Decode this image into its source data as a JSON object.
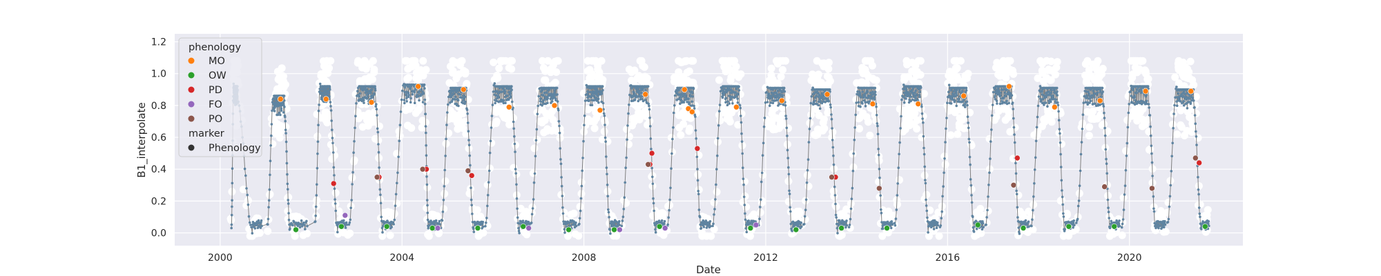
{
  "chart_data": {
    "type": "scatter",
    "xlabel": "Date",
    "ylabel": "B1_interpolate",
    "xlim": [
      "1999-01-01",
      "2022-07-01"
    ],
    "ylim": [
      -0.08,
      1.25
    ],
    "x_ticks": [
      "2000",
      "2004",
      "2008",
      "2012",
      "2016",
      "2020"
    ],
    "y_ticks": [
      "0.0",
      "0.2",
      "0.4",
      "0.6",
      "0.8",
      "1.0",
      "1.2"
    ],
    "grid": true,
    "background_color": "#eaeaf2",
    "legend": {
      "placement": "upper-left",
      "hue_title": "phenology",
      "hue_entries": [
        {
          "label": "MO",
          "color": "#ff7f0e"
        },
        {
          "label": "OW",
          "color": "#2ca02c"
        },
        {
          "label": "PD",
          "color": "#d62728"
        },
        {
          "label": "FO",
          "color": "#9467bd"
        },
        {
          "label": "PO",
          "color": "#8c564b"
        }
      ],
      "style_title": "marker",
      "style_entries": [
        {
          "label": "Phenology",
          "color": "#333333"
        }
      ]
    },
    "series": [
      {
        "role": "raw observations",
        "color": "#ffffff",
        "marker": "circle"
      },
      {
        "role": "interpolated curve",
        "color": "#5f84a1",
        "marker": "line"
      }
    ],
    "cycles": [
      {
        "start": "2000-04-01",
        "peak": 0.92,
        "peak_end": "2000-05-20",
        "floor_start": "2000-09-15",
        "floor_end": "2000-12-01"
      },
      {
        "start": "2001-01-15",
        "peak": 0.86,
        "peak_end": "2001-06-01",
        "floor_start": "2001-07-15",
        "floor_end": "2001-12-01"
      },
      {
        "start": "2002-02-01",
        "peak": 0.92,
        "peak_end": "2002-06-01",
        "floor_start": "2002-08-01",
        "floor_end": "2002-10-15"
      },
      {
        "start": "2002-11-01",
        "peak": 0.92,
        "peak_end": "2003-06-01",
        "floor_start": "2003-08-01",
        "floor_end": "2003-10-10"
      },
      {
        "start": "2003-10-20",
        "peak": 0.93,
        "peak_end": "2004-07-01",
        "floor_start": "2004-08-01",
        "floor_end": "2004-11-01"
      },
      {
        "start": "2004-11-10",
        "peak": 0.91,
        "peak_end": "2005-06-01",
        "floor_start": "2005-08-01",
        "floor_end": "2005-10-15"
      },
      {
        "start": "2005-11-01",
        "peak": 0.92,
        "peak_end": "2006-06-01",
        "floor_start": "2006-08-01",
        "floor_end": "2006-10-20"
      },
      {
        "start": "2006-11-01",
        "peak": 0.91,
        "peak_end": "2007-06-01",
        "floor_start": "2007-08-01",
        "floor_end": "2007-11-01"
      },
      {
        "start": "2007-11-20",
        "peak": 0.92,
        "peak_end": "2008-06-01",
        "floor_start": "2008-08-01",
        "floor_end": "2008-10-15"
      },
      {
        "start": "2008-11-01",
        "peak": 0.92,
        "peak_end": "2009-06-01",
        "floor_start": "2009-08-01",
        "floor_end": "2009-10-15"
      },
      {
        "start": "2009-11-01",
        "peak": 0.91,
        "peak_end": "2010-06-01",
        "floor_start": "2010-08-01",
        "floor_end": "2010-10-15"
      },
      {
        "start": "2010-11-01",
        "peak": 0.92,
        "peak_end": "2011-06-01",
        "floor_start": "2011-08-01",
        "floor_end": "2011-10-15"
      },
      {
        "start": "2011-11-01",
        "peak": 0.91,
        "peak_end": "2012-06-01",
        "floor_start": "2012-08-01",
        "floor_end": "2012-10-15"
      },
      {
        "start": "2012-11-01",
        "peak": 0.9,
        "peak_end": "2013-06-01",
        "floor_start": "2013-08-01",
        "floor_end": "2013-10-15"
      },
      {
        "start": "2013-11-01",
        "peak": 0.91,
        "peak_end": "2014-06-01",
        "floor_start": "2014-08-01",
        "floor_end": "2014-10-15"
      },
      {
        "start": "2014-11-01",
        "peak": 0.92,
        "peak_end": "2015-06-01",
        "floor_start": "2015-08-01",
        "floor_end": "2015-10-15"
      },
      {
        "start": "2015-11-01",
        "peak": 0.91,
        "peak_end": "2016-06-01",
        "floor_start": "2016-08-01",
        "floor_end": "2016-10-15"
      },
      {
        "start": "2016-11-01",
        "peak": 0.92,
        "peak_end": "2017-06-01",
        "floor_start": "2017-08-01",
        "floor_end": "2017-10-15"
      },
      {
        "start": "2017-11-01",
        "peak": 0.91,
        "peak_end": "2018-06-01",
        "floor_start": "2018-08-01",
        "floor_end": "2018-10-15"
      },
      {
        "start": "2018-11-01",
        "peak": 0.91,
        "peak_end": "2019-06-01",
        "floor_start": "2019-08-01",
        "floor_end": "2019-10-15"
      },
      {
        "start": "2019-11-01",
        "peak": 0.92,
        "peak_end": "2020-06-01",
        "floor_start": "2020-08-01",
        "floor_end": "2020-10-15"
      },
      {
        "start": "2020-11-01",
        "peak": 0.9,
        "peak_end": "2021-06-01",
        "floor_start": "2021-08-01",
        "floor_end": "2021-10-01"
      }
    ],
    "phenology_points": [
      {
        "date": "2001-05-01",
        "y": 0.84,
        "class": "MO"
      },
      {
        "date": "2002-05-01",
        "y": 0.84,
        "class": "MO"
      },
      {
        "date": "2003-05-01",
        "y": 0.82,
        "class": "MO"
      },
      {
        "date": "2004-05-10",
        "y": 0.92,
        "class": "MO"
      },
      {
        "date": "2005-05-10",
        "y": 0.9,
        "class": "MO"
      },
      {
        "date": "2006-05-10",
        "y": 0.79,
        "class": "MO"
      },
      {
        "date": "2007-05-10",
        "y": 0.8,
        "class": "MO"
      },
      {
        "date": "2008-05-10",
        "y": 0.77,
        "class": "MO"
      },
      {
        "date": "2009-05-10",
        "y": 0.87,
        "class": "MO"
      },
      {
        "date": "2010-03-20",
        "y": 0.9,
        "class": "MO"
      },
      {
        "date": "2010-04-20",
        "y": 0.78,
        "class": "MO"
      },
      {
        "date": "2010-05-20",
        "y": 0.76,
        "class": "MO"
      },
      {
        "date": "2011-05-10",
        "y": 0.79,
        "class": "MO"
      },
      {
        "date": "2012-05-10",
        "y": 0.83,
        "class": "MO"
      },
      {
        "date": "2013-05-10",
        "y": 0.87,
        "class": "MO"
      },
      {
        "date": "2014-05-10",
        "y": 0.81,
        "class": "MO"
      },
      {
        "date": "2015-05-10",
        "y": 0.81,
        "class": "MO"
      },
      {
        "date": "2016-05-10",
        "y": 0.86,
        "class": "MO"
      },
      {
        "date": "2017-05-10",
        "y": 0.92,
        "class": "MO"
      },
      {
        "date": "2018-05-10",
        "y": 0.79,
        "class": "MO"
      },
      {
        "date": "2019-05-10",
        "y": 0.83,
        "class": "MO"
      },
      {
        "date": "2020-05-10",
        "y": 0.89,
        "class": "MO"
      },
      {
        "date": "2021-05-10",
        "y": 0.89,
        "class": "MO"
      },
      {
        "date": "2001-09-01",
        "y": 0.02,
        "class": "OW"
      },
      {
        "date": "2002-09-01",
        "y": 0.04,
        "class": "OW"
      },
      {
        "date": "2003-09-01",
        "y": 0.04,
        "class": "OW"
      },
      {
        "date": "2004-09-01",
        "y": 0.03,
        "class": "OW"
      },
      {
        "date": "2005-09-01",
        "y": 0.03,
        "class": "OW"
      },
      {
        "date": "2006-09-01",
        "y": 0.04,
        "class": "OW"
      },
      {
        "date": "2007-09-01",
        "y": 0.02,
        "class": "OW"
      },
      {
        "date": "2008-09-01",
        "y": 0.02,
        "class": "OW"
      },
      {
        "date": "2009-09-01",
        "y": 0.04,
        "class": "OW"
      },
      {
        "date": "2011-09-01",
        "y": 0.03,
        "class": "OW"
      },
      {
        "date": "2012-09-01",
        "y": 0.02,
        "class": "OW"
      },
      {
        "date": "2013-09-01",
        "y": 0.03,
        "class": "OW"
      },
      {
        "date": "2014-09-01",
        "y": 0.03,
        "class": "OW"
      },
      {
        "date": "2016-09-01",
        "y": 0.05,
        "class": "OW"
      },
      {
        "date": "2017-09-01",
        "y": 0.03,
        "class": "OW"
      },
      {
        "date": "2018-09-01",
        "y": 0.04,
        "class": "OW"
      },
      {
        "date": "2019-09-01",
        "y": 0.04,
        "class": "OW"
      },
      {
        "date": "2021-09-01",
        "y": 0.04,
        "class": "OW"
      },
      {
        "date": "2002-07-01",
        "y": 0.31,
        "class": "PD"
      },
      {
        "date": "2003-07-01",
        "y": 0.35,
        "class": "PD"
      },
      {
        "date": "2004-07-15",
        "y": 0.4,
        "class": "PD"
      },
      {
        "date": "2005-07-15",
        "y": 0.36,
        "class": "PD"
      },
      {
        "date": "2009-07-01",
        "y": 0.5,
        "class": "PD"
      },
      {
        "date": "2009-06-15",
        "y": 0.43,
        "class": "PD"
      },
      {
        "date": "2010-07-01",
        "y": 0.53,
        "class": "PD"
      },
      {
        "date": "2013-07-15",
        "y": 0.35,
        "class": "PD"
      },
      {
        "date": "2017-07-15",
        "y": 0.47,
        "class": "PD"
      },
      {
        "date": "2021-07-15",
        "y": 0.44,
        "class": "PD"
      },
      {
        "date": "2002-10-01",
        "y": 0.11,
        "class": "FO"
      },
      {
        "date": "2004-10-15",
        "y": 0.03,
        "class": "FO"
      },
      {
        "date": "2006-10-15",
        "y": 0.03,
        "class": "FO"
      },
      {
        "date": "2008-10-15",
        "y": 0.02,
        "class": "FO"
      },
      {
        "date": "2009-10-15",
        "y": 0.03,
        "class": "FO"
      },
      {
        "date": "2011-10-15",
        "y": 0.05,
        "class": "FO"
      },
      {
        "date": "2003-06-15",
        "y": 0.35,
        "class": "PO"
      },
      {
        "date": "2004-06-15",
        "y": 0.4,
        "class": "PO"
      },
      {
        "date": "2005-06-15",
        "y": 0.39,
        "class": "PO"
      },
      {
        "date": "2009-06-01",
        "y": 0.43,
        "class": "PO"
      },
      {
        "date": "2013-06-15",
        "y": 0.35,
        "class": "PO"
      },
      {
        "date": "2014-07-01",
        "y": 0.28,
        "class": "PO"
      },
      {
        "date": "2017-06-15",
        "y": 0.3,
        "class": "PO"
      },
      {
        "date": "2019-06-15",
        "y": 0.29,
        "class": "PO"
      },
      {
        "date": "2020-07-01",
        "y": 0.28,
        "class": "PO"
      },
      {
        "date": "2021-06-15",
        "y": 0.47,
        "class": "PO"
      }
    ]
  }
}
